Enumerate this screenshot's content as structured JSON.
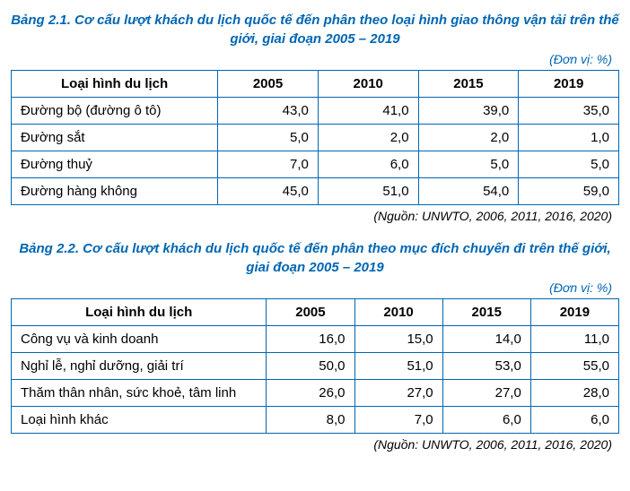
{
  "table1": {
    "title": "Bảng 2.1. Cơ cấu lượt khách du lịch quốc tế đến phân theo loại hình giao thông vận tải trên thế giới, giai đoạn 2005 – 2019",
    "unit": "(Đơn vị: %)",
    "header_label": "Loại hình du lịch",
    "years": [
      "2005",
      "2010",
      "2015",
      "2019"
    ],
    "rows": [
      {
        "label": "Đường bộ (đường ô tô)",
        "values": [
          "43,0",
          "41,0",
          "39,0",
          "35,0"
        ]
      },
      {
        "label": "Đường sắt",
        "values": [
          "5,0",
          "2,0",
          "2,0",
          "1,0"
        ]
      },
      {
        "label": "Đường thuỷ",
        "values": [
          "7,0",
          "6,0",
          "5,0",
          "5,0"
        ]
      },
      {
        "label": "Đường hàng không",
        "values": [
          "45,0",
          "51,0",
          "54,0",
          "59,0"
        ]
      }
    ],
    "source": "(Nguồn: UNWTO, 2006, 2011, 2016, 2020)",
    "col_widths": [
      "34%",
      "16.5%",
      "16.5%",
      "16.5%",
      "16.5%"
    ],
    "border_color": "#0066b3",
    "title_color": "#0066b3",
    "font_size": 15
  },
  "table2": {
    "title": "Bảng 2.2. Cơ cấu lượt khách du lịch quốc tế đến phân theo mục đích chuyến đi trên thế giới, giai đoạn 2005 – 2019",
    "unit": "(Đơn vị: %)",
    "header_label": "Loại hình du lịch",
    "years": [
      "2005",
      "2010",
      "2015",
      "2019"
    ],
    "rows": [
      {
        "label": "Công vụ và kinh doanh",
        "values": [
          "16,0",
          "15,0",
          "14,0",
          "11,0"
        ]
      },
      {
        "label": "Nghỉ lễ, nghỉ dưỡng, giải trí",
        "values": [
          "50,0",
          "51,0",
          "53,0",
          "55,0"
        ]
      },
      {
        "label": "Thăm thân nhân, sức khoẻ, tâm linh",
        "values": [
          "26,0",
          "27,0",
          "27,0",
          "28,0"
        ]
      },
      {
        "label": "Loại hình khác",
        "values": [
          "8,0",
          "7,0",
          "6,0",
          "6,0"
        ]
      }
    ],
    "source": "(Nguồn: UNWTO, 2006, 2011, 2016, 2020)",
    "col_widths": [
      "42%",
      "14.5%",
      "14.5%",
      "14.5%",
      "14.5%"
    ],
    "border_color": "#0066b3",
    "title_color": "#0066b3",
    "font_size": 15
  }
}
